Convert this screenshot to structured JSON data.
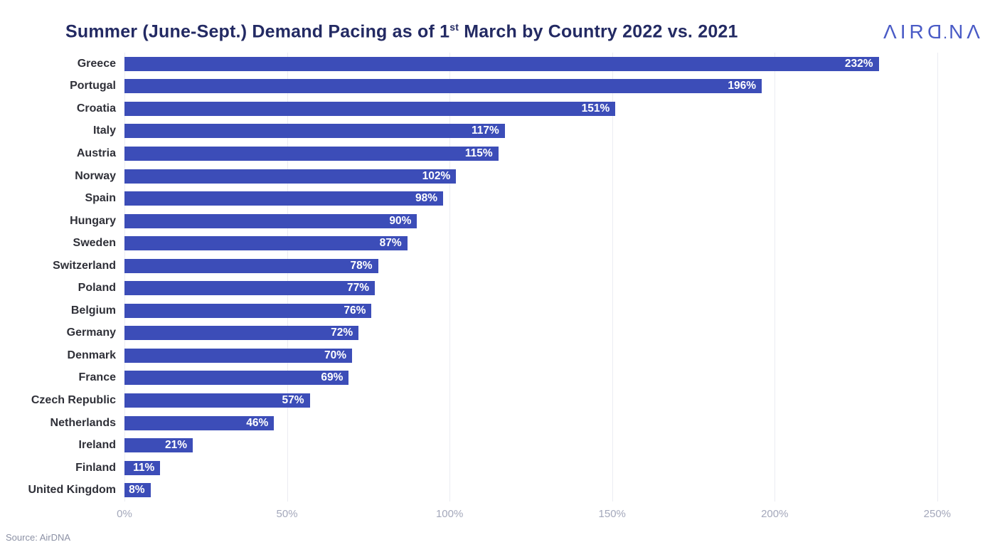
{
  "header": {
    "title_prefix": "Summer (June-Sept.) Demand Pacing as of 1",
    "title_sup": "st",
    "title_suffix": " March by Country 2022 vs. 2021",
    "title_color": "#232A63",
    "logo_text": "AIRDNA",
    "logo_display": "ΛIRD.NΛ",
    "logo_color": "#4A5BC6"
  },
  "chart_data": {
    "type": "bar",
    "orientation": "horizontal",
    "title": "Summer (June-Sept.) Demand Pacing as of 1st March by Country 2022 vs. 2021",
    "categories": [
      "Greece",
      "Portugal",
      "Croatia",
      "Italy",
      "Austria",
      "Norway",
      "Spain",
      "Hungary",
      "Sweden",
      "Switzerland",
      "Poland",
      "Belgium",
      "Germany",
      "Denmark",
      "France",
      "Czech Republic",
      "Netherlands",
      "Ireland",
      "Finland",
      "United Kingdom"
    ],
    "values": [
      232,
      196,
      151,
      117,
      115,
      102,
      98,
      90,
      87,
      78,
      77,
      76,
      72,
      70,
      69,
      57,
      46,
      21,
      11,
      8
    ],
    "value_suffix": "%",
    "xlim": [
      0,
      250
    ],
    "x_ticks": [
      {
        "value": 0,
        "label": "0%"
      },
      {
        "value": 50,
        "label": "50%"
      },
      {
        "value": 100,
        "label": "100%"
      },
      {
        "value": 150,
        "label": "150%"
      },
      {
        "value": 200,
        "label": "200%"
      },
      {
        "value": 250,
        "label": "250%"
      }
    ],
    "bar_color": "#3C4DB8",
    "value_label_color": "#FFFFFF",
    "grid": true,
    "gridline_color": "#EBECF2",
    "legend": "none"
  },
  "footer": {
    "source": "Source: AirDNA"
  }
}
